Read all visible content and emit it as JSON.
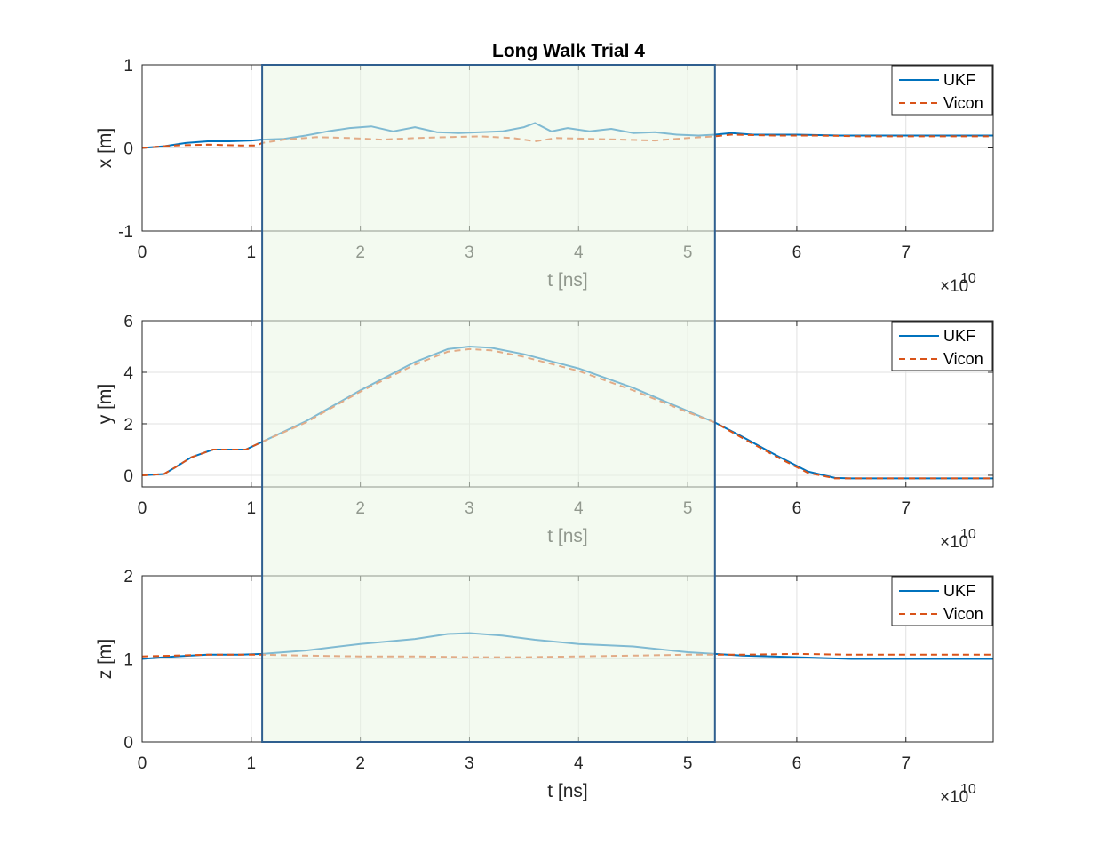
{
  "chart_data": {
    "type": "line",
    "title": "Long Walk Trial 4",
    "x_exponent_label": "×10",
    "x_exponent": "10",
    "x_ticks": [
      "0",
      "1",
      "2",
      "3",
      "4",
      "5",
      "6",
      "7"
    ],
    "xlim": [
      0,
      7.8
    ],
    "x_scale": 10000000000.0,
    "grid": true,
    "legend_placement": "top-right",
    "highlight_region": {
      "x_start": 1.1,
      "x_end": 5.25,
      "color": "#e9f5e3",
      "border": "#2f5f8f"
    },
    "series_colors": {
      "UKF": "#0072bd",
      "Vicon": "#d95319"
    },
    "panels": [
      {
        "ylabel": "x [m]",
        "xlabel": "t [ns]",
        "ylim": [
          -1,
          1
        ],
        "y_ticks": [
          "-1",
          "0",
          "1"
        ],
        "legend": [
          "UKF",
          "Vicon"
        ],
        "series": [
          {
            "name": "UKF",
            "style": "solid",
            "x": [
              0,
              0.2,
              0.4,
              0.6,
              0.8,
              1.0,
              1.1,
              1.3,
              1.5,
              1.7,
              1.9,
              2.1,
              2.3,
              2.5,
              2.7,
              2.9,
              3.1,
              3.3,
              3.5,
              3.6,
              3.75,
              3.9,
              4.1,
              4.3,
              4.5,
              4.7,
              4.9,
              5.1,
              5.25,
              5.4,
              5.6,
              6.0,
              6.4,
              6.8,
              7.2,
              7.8
            ],
            "y": [
              0.0,
              0.02,
              0.06,
              0.08,
              0.08,
              0.09,
              0.1,
              0.11,
              0.15,
              0.2,
              0.24,
              0.26,
              0.2,
              0.25,
              0.19,
              0.18,
              0.19,
              0.2,
              0.25,
              0.3,
              0.2,
              0.24,
              0.2,
              0.23,
              0.18,
              0.19,
              0.16,
              0.15,
              0.16,
              0.18,
              0.16,
              0.16,
              0.15,
              0.15,
              0.15,
              0.15
            ]
          },
          {
            "name": "Vicon",
            "style": "dashed",
            "x": [
              0,
              0.3,
              0.6,
              0.9,
              1.05,
              1.1,
              1.3,
              1.6,
              1.9,
              2.2,
              2.5,
              2.8,
              3.1,
              3.4,
              3.6,
              3.8,
              4.1,
              4.4,
              4.7,
              5.0,
              5.25,
              5.4,
              5.8,
              6.2,
              6.6,
              7.0,
              7.8
            ],
            "y": [
              0.0,
              0.03,
              0.04,
              0.03,
              0.03,
              0.06,
              0.1,
              0.13,
              0.12,
              0.1,
              0.12,
              0.13,
              0.14,
              0.12,
              0.08,
              0.12,
              0.11,
              0.1,
              0.09,
              0.12,
              0.14,
              0.16,
              0.15,
              0.15,
              0.14,
              0.14,
              0.14
            ]
          }
        ]
      },
      {
        "ylabel": "y [m]",
        "xlabel": "t [ns]",
        "ylim": [
          -0.45,
          6
        ],
        "y_ticks": [
          "0",
          "2",
          "4",
          "6"
        ],
        "legend": [
          "UKF",
          "Vicon"
        ],
        "series": [
          {
            "name": "UKF",
            "style": "solid",
            "x": [
              0,
              0.2,
              0.3,
              0.45,
              0.65,
              0.8,
              0.95,
              1.1,
              1.5,
              2.0,
              2.5,
              2.8,
              3.0,
              3.2,
              3.5,
              4.0,
              4.5,
              5.0,
              5.25,
              5.5,
              5.8,
              6.1,
              6.35,
              6.5,
              7.0,
              7.8
            ],
            "y": [
              0.0,
              0.05,
              0.3,
              0.7,
              1.0,
              1.0,
              1.0,
              1.3,
              2.1,
              3.3,
              4.4,
              4.9,
              5.0,
              4.95,
              4.7,
              4.15,
              3.4,
              2.5,
              2.05,
              1.5,
              0.8,
              0.15,
              -0.1,
              -0.12,
              -0.12,
              -0.12
            ]
          },
          {
            "name": "Vicon",
            "style": "dashed",
            "x": [
              0,
              0.2,
              0.3,
              0.45,
              0.65,
              0.8,
              0.95,
              1.1,
              1.5,
              2.0,
              2.5,
              2.8,
              3.0,
              3.2,
              3.5,
              4.0,
              4.5,
              5.0,
              5.25,
              5.5,
              5.8,
              6.1,
              6.35,
              6.5,
              7.0,
              7.8
            ],
            "y": [
              0.0,
              0.05,
              0.3,
              0.7,
              1.0,
              1.0,
              1.0,
              1.3,
              2.05,
              3.25,
              4.3,
              4.8,
              4.9,
              4.85,
              4.6,
              4.05,
              3.3,
              2.45,
              2.05,
              1.45,
              0.75,
              0.1,
              -0.12,
              -0.12,
              -0.12,
              -0.12
            ]
          }
        ]
      },
      {
        "ylabel": "z [m]",
        "xlabel": "t [ns]",
        "ylim": [
          0,
          2
        ],
        "y_ticks": [
          "0",
          "1",
          "2"
        ],
        "legend": [
          "UKF",
          "Vicon"
        ],
        "series": [
          {
            "name": "UKF",
            "style": "solid",
            "x": [
              0,
              0.3,
              0.6,
              0.9,
              1.1,
              1.5,
              2.0,
              2.5,
              2.8,
              3.0,
              3.3,
              3.6,
              4.0,
              4.5,
              5.0,
              5.25,
              5.5,
              6.0,
              6.5,
              7.0,
              7.8
            ],
            "y": [
              1.0,
              1.03,
              1.05,
              1.05,
              1.06,
              1.1,
              1.18,
              1.24,
              1.3,
              1.31,
              1.28,
              1.23,
              1.18,
              1.15,
              1.08,
              1.06,
              1.04,
              1.02,
              1.0,
              1.0,
              1.0
            ]
          },
          {
            "name": "Vicon",
            "style": "dashed",
            "x": [
              0,
              0.3,
              0.6,
              0.9,
              1.1,
              1.5,
              2.0,
              2.5,
              3.0,
              3.5,
              4.0,
              4.5,
              5.0,
              5.25,
              5.5,
              6.0,
              6.5,
              7.0,
              7.8
            ],
            "y": [
              1.03,
              1.04,
              1.05,
              1.05,
              1.05,
              1.04,
              1.03,
              1.03,
              1.02,
              1.02,
              1.03,
              1.04,
              1.05,
              1.05,
              1.05,
              1.06,
              1.05,
              1.05,
              1.05
            ]
          }
        ]
      }
    ]
  }
}
